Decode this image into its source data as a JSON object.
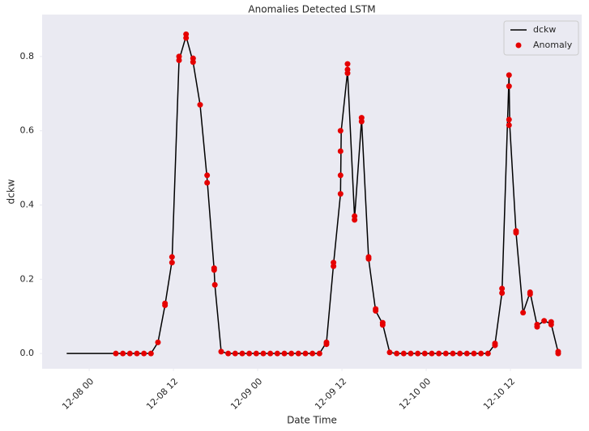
{
  "chart_data": {
    "type": "line",
    "title": "Anomalies Detected LSTM",
    "x_label": "Date Time",
    "y_label": "dckw",
    "xlim": [
      "12-07 17:18",
      "12-10 22:09"
    ],
    "xticks": [
      {
        "value": "12-08 00:00",
        "label": "12-08 00"
      },
      {
        "value": "12-08 12:00",
        "label": "12-08 12"
      },
      {
        "value": "12-09 00:00",
        "label": "12-09 00"
      },
      {
        "value": "12-09 12:00",
        "label": "12-09 12"
      },
      {
        "value": "12-10 00:00",
        "label": "12-10 00"
      },
      {
        "value": "12-10 12:00",
        "label": "12-10 12"
      }
    ],
    "ylim": [
      -0.041,
      0.913
    ],
    "yticks": [
      {
        "value": 0,
        "label": "0.0"
      },
      0.2,
      0.4,
      0.6,
      0.8
    ],
    "grid": false,
    "background": "#eaeaf2",
    "legend_position": "upper-right",
    "series": [
      {
        "name": "dckw",
        "kind": "line",
        "color": "#000000",
        "x": [
          "12-07 20:48",
          "12-07 21:48",
          "12-07 22:48",
          "12-07 23:48",
          "12-08 00:48",
          "12-08 01:48",
          "12-08 02:48",
          "12-08 03:48",
          "12-08 04:48",
          "12-08 05:48",
          "12-08 06:48",
          "12-08 07:48",
          "12-08 08:48",
          "12-08 09:48",
          "12-08 10:48",
          "12-08 11:48",
          "12-08 12:48",
          "12-08 13:48",
          "12-08 14:48",
          "12-08 15:48",
          "12-08 16:48",
          "12-08 17:48",
          "12-08 17:54",
          "12-08 18:48",
          "12-08 19:48",
          "12-08 20:48",
          "12-08 21:48",
          "12-08 22:48",
          "12-08 23:48",
          "12-09 00:48",
          "12-09 01:48",
          "12-09 02:48",
          "12-09 03:48",
          "12-09 04:48",
          "12-09 05:48",
          "12-09 06:48",
          "12-09 07:48",
          "12-09 08:48",
          "12-09 09:48",
          "12-09 10:48",
          "12-09 11:48",
          "12-09 11:54",
          "12-09 12:48",
          "12-09 13:48",
          "12-09 14:48",
          "12-09 15:48",
          "12-09 16:48",
          "12-09 17:48",
          "12-09 18:48",
          "12-09 19:48",
          "12-09 20:48",
          "12-09 21:48",
          "12-09 22:48",
          "12-09 23:48",
          "12-10 00:48",
          "12-10 01:48",
          "12-10 02:48",
          "12-10 03:48",
          "12-10 04:48",
          "12-10 05:48",
          "12-10 06:48",
          "12-10 07:48",
          "12-10 08:48",
          "12-10 09:48",
          "12-10 10:48",
          "12-10 11:48",
          "12-10 11:54",
          "12-10 12:48",
          "12-10 13:48",
          "12-10 14:48",
          "12-10 15:48",
          "12-10 16:48",
          "12-10 17:48",
          "12-10 18:48"
        ],
        "values": [
          0,
          0,
          0,
          0,
          0,
          0,
          0,
          0,
          0,
          0,
          0,
          0,
          0,
          0.03,
          0.13,
          0.25,
          0.79,
          0.855,
          0.785,
          0.67,
          0.47,
          0.225,
          0.185,
          0.005,
          0,
          0,
          0,
          0,
          0,
          0,
          0,
          0,
          0,
          0,
          0,
          0,
          0,
          0,
          0.03,
          0.24,
          0.43,
          0.6,
          0.76,
          0.365,
          0.63,
          0.255,
          0.115,
          0.08,
          0.003,
          0,
          0,
          0,
          0,
          0,
          0,
          0,
          0,
          0,
          0,
          0,
          0,
          0,
          0,
          0.025,
          0.165,
          0.75,
          0.615,
          0.325,
          0.11,
          0.165,
          0.075,
          0.088,
          0.08,
          0.003
        ]
      },
      {
        "name": "Anomaly",
        "kind": "scatter",
        "color": "#e50000",
        "x": [
          "12-08 03:48",
          "12-08 04:48",
          "12-08 05:48",
          "12-08 06:48",
          "12-08 07:48",
          "12-08 08:48",
          "12-08 09:48",
          "12-08 10:48",
          "12-08 10:48",
          "12-08 11:48",
          "12-08 11:48",
          "12-08 12:48",
          "12-08 12:48",
          "12-08 13:48",
          "12-08 13:48",
          "12-08 14:48",
          "12-08 14:48",
          "12-08 15:48",
          "12-08 16:48",
          "12-08 16:48",
          "12-08 17:48",
          "12-08 17:48",
          "12-08 17:54",
          "12-08 18:48",
          "12-08 19:48",
          "12-08 20:48",
          "12-08 21:48",
          "12-08 22:48",
          "12-08 23:48",
          "12-09 00:48",
          "12-09 01:48",
          "12-09 02:48",
          "12-09 03:48",
          "12-09 04:48",
          "12-09 05:48",
          "12-09 06:48",
          "12-09 07:48",
          "12-09 08:48",
          "12-09 09:48",
          "12-09 09:48",
          "12-09 10:48",
          "12-09 10:48",
          "12-09 11:48",
          "12-09 11:48",
          "12-09 11:48",
          "12-09 11:48",
          "12-09 12:48",
          "12-09 12:48",
          "12-09 12:48",
          "12-09 13:48",
          "12-09 13:48",
          "12-09 14:48",
          "12-09 14:48",
          "12-09 15:48",
          "12-09 15:48",
          "12-09 16:48",
          "12-09 16:48",
          "12-09 17:48",
          "12-09 17:48",
          "12-09 18:48",
          "12-09 19:48",
          "12-09 20:48",
          "12-09 21:48",
          "12-09 22:48",
          "12-09 23:48",
          "12-10 00:48",
          "12-10 01:48",
          "12-10 02:48",
          "12-10 03:48",
          "12-10 04:48",
          "12-10 05:48",
          "12-10 06:48",
          "12-10 07:48",
          "12-10 08:48",
          "12-10 09:48",
          "12-10 09:48",
          "12-10 10:48",
          "12-10 10:48",
          "12-10 11:48",
          "12-10 11:48",
          "12-10 11:48",
          "12-10 11:48",
          "12-10 12:48",
          "12-10 12:48",
          "12-10 13:48",
          "12-10 14:48",
          "12-10 14:48",
          "12-10 15:48",
          "12-10 15:48",
          "12-10 16:48",
          "12-10 17:48",
          "12-10 17:48",
          "12-10 18:48",
          "12-10 18:48"
        ],
        "values": [
          0,
          0,
          0,
          0,
          0,
          0,
          0.03,
          0.13,
          0.135,
          0.26,
          0.245,
          0.8,
          0.79,
          0.86,
          0.85,
          0.795,
          0.785,
          0.67,
          0.48,
          0.46,
          0.23,
          0.225,
          0.185,
          0.005,
          0,
          0,
          0,
          0,
          0,
          0,
          0,
          0,
          0,
          0,
          0,
          0,
          0,
          0,
          0.03,
          0.025,
          0.245,
          0.235,
          0.6,
          0.545,
          0.48,
          0.43,
          0.78,
          0.765,
          0.755,
          0.37,
          0.36,
          0.635,
          0.625,
          0.26,
          0.255,
          0.12,
          0.115,
          0.083,
          0.077,
          0.003,
          0,
          0,
          0,
          0,
          0,
          0,
          0,
          0,
          0,
          0,
          0,
          0,
          0,
          0,
          0.027,
          0.022,
          0.175,
          0.163,
          0.75,
          0.72,
          0.63,
          0.615,
          0.33,
          0.325,
          0.11,
          0.165,
          0.16,
          0.078,
          0.072,
          0.088,
          0.085,
          0.078,
          0.005,
          0
        ]
      }
    ]
  }
}
